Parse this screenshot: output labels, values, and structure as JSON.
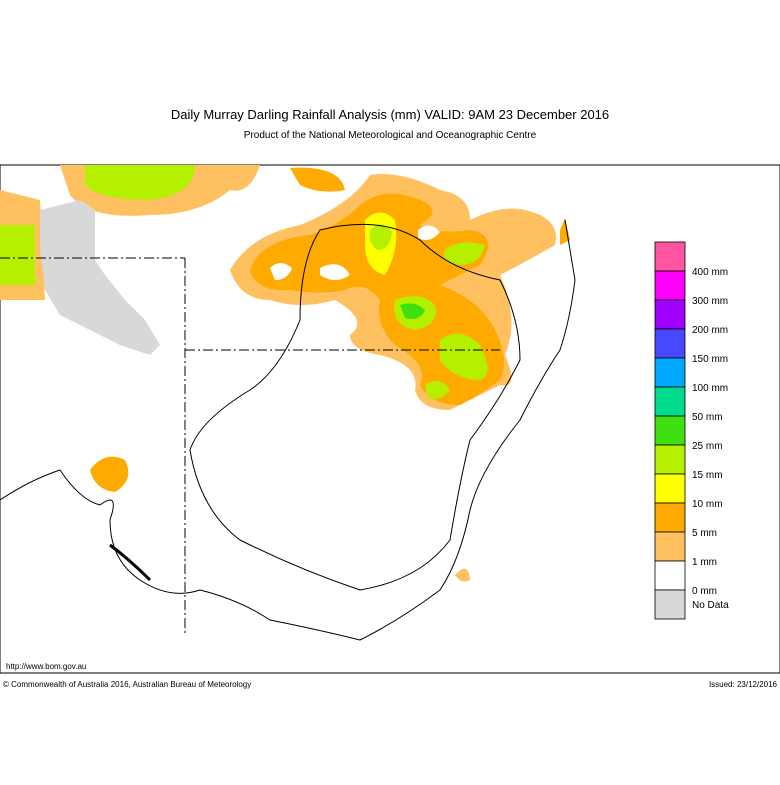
{
  "header": {
    "title": "Daily Murray Darling Rainfall Analysis (mm)  VALID: 9AM 23 December 2016",
    "subtitle": "Product of the National Meteorological and Oceanographic Centre"
  },
  "legend": {
    "entries": [
      {
        "label": "400 mm",
        "color": "#ff55a0"
      },
      {
        "label": "300 mm",
        "color": "#ff00ff"
      },
      {
        "label": "200 mm",
        "color": "#a000ff"
      },
      {
        "label": "150 mm",
        "color": "#4848ff"
      },
      {
        "label": "100 mm",
        "color": "#00a8ff"
      },
      {
        "label": "50 mm",
        "color": "#00dc8c"
      },
      {
        "label": "25 mm",
        "color": "#40e010"
      },
      {
        "label": "15 mm",
        "color": "#b4f000"
      },
      {
        "label": "10 mm",
        "color": "#ffff00"
      },
      {
        "label": "5 mm",
        "color": "#ffaa00"
      },
      {
        "label": "1 mm",
        "color": "#ffc060"
      },
      {
        "label": "0 mm",
        "color": "#ffffff"
      }
    ],
    "no_data": {
      "label": "No Data",
      "color": "#d8d8d8"
    }
  },
  "footer": {
    "url": "http://www.bom.gov.au",
    "copyright": "© Commonwealth of Australia 2016, Australian Bureau of Meteorology",
    "issued": "Issued: 23/12/2016"
  }
}
